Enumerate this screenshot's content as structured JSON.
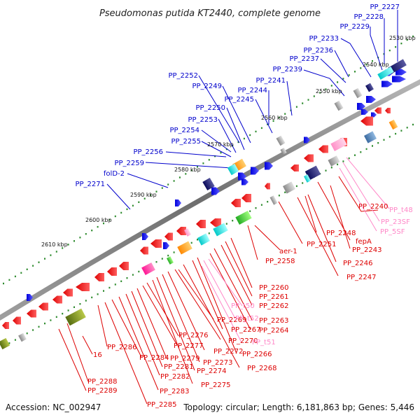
{
  "title": "Pseudomonas putida KT2440, complete genome",
  "footer": {
    "accession": "Accession: NC_002947",
    "summary": "Topology: circular; Length: 6,181,863 bp; Genes: 5,446"
  },
  "colors": {
    "forward_label": "#0000cc",
    "reverse_label": "#dd0000",
    "rna_label": "#ff88c8",
    "backbone": "#8a8a8a",
    "ticks": "#2e8b2e"
  },
  "ruler_labels": [
    "2530 kbp",
    "2540 kbp",
    "2550 kbp",
    "2560 kbp",
    "2570 kbp",
    "2580 kbp",
    "2590 kbp",
    "2600 kbp",
    "2610 kbp"
  ],
  "forward_labels": [
    "PP_2227",
    "PP_2228",
    "PP_2229",
    "PP_2233",
    "PP_2236",
    "PP_2237",
    "PP_2239",
    "PP_2241",
    "PP_2244",
    "PP_2245",
    "PP_2249",
    "PP_2252",
    "PP_2250",
    "PP_2253",
    "PP_2254",
    "PP_2255",
    "PP_2256",
    "PP_2259",
    "folD-2",
    "PP_2271"
  ],
  "reverse_labels": [
    "PP_2240",
    "PP_2243",
    "fepA",
    "PP_2248",
    "PP_2246",
    "PP_2247",
    "PP_2251",
    "aer-1",
    "PP_2258",
    "PP_2260",
    "PP_2261",
    "PP_2262",
    "PP_2263",
    "PP_2264",
    "PP_2266",
    "PP_2267",
    "PP_2268",
    "PP_2269",
    "PP_2270",
    "PP_2272",
    "PP_2273",
    "PP_2274",
    "PP_2275",
    "PP_2276",
    "PP_2277",
    "PP_2279",
    "PP_2281",
    "PP_2282",
    "PP_2283",
    "PP_2284",
    "PP_2285",
    "PP_2286",
    "PP_2288",
    "PP_2289",
    "16"
  ],
  "rna_labels": [
    "PP_t48",
    "PP_23SF",
    "PP_5SF",
    "PP_t50",
    "PP_t52",
    "PP_t51"
  ]
}
